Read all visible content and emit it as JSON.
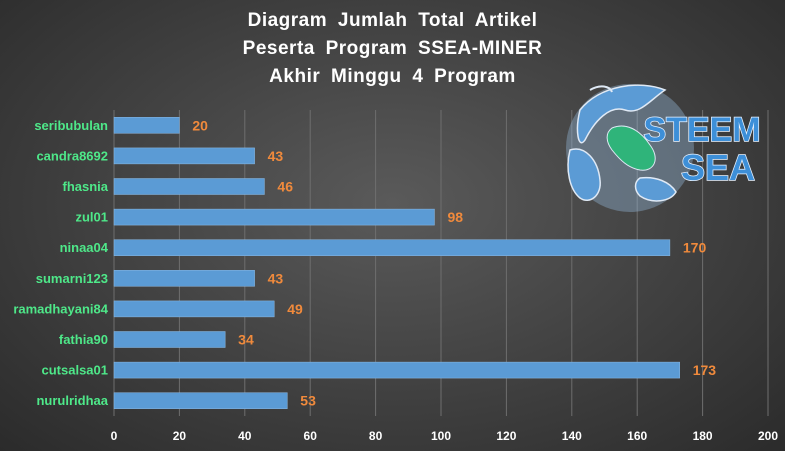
{
  "title_lines": [
    "Diagram Jumlah Total Artikel",
    "Peserta Program SSEA-MINER",
    "Akhir Minggu 4 Program"
  ],
  "logo": {
    "line1": "STEEM",
    "line2": "SEA",
    "icon": "globe-icon"
  },
  "colors": {
    "bar": "#5b9bd5",
    "category_text": "#4ee889",
    "value_text": "#f08a3c",
    "tick_text": "#ffffff"
  },
  "chart_data": {
    "type": "bar",
    "orientation": "horizontal",
    "categories": [
      "seribubulan",
      "candra8692",
      "fhasnia",
      "zul01",
      "ninaa04",
      "sumarni123",
      "ramadhayani84",
      "fathia90",
      "cutsalsa01",
      "nurulridhaa"
    ],
    "values": [
      20,
      43,
      46,
      98,
      170,
      43,
      49,
      34,
      173,
      53
    ],
    "xlim": [
      0,
      200
    ],
    "xticks": [
      0,
      20,
      40,
      60,
      80,
      100,
      120,
      140,
      160,
      180,
      200
    ],
    "grid": "vertical",
    "legend": "none"
  }
}
